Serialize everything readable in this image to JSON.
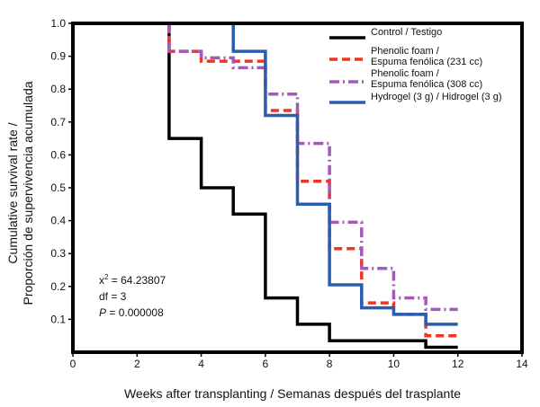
{
  "chart_data": {
    "type": "line",
    "title": "",
    "xlabel": "Weeks after transplanting / Semanas después del trasplante",
    "ylabel_line1": "Cumulative survival rate /",
    "ylabel_line2": "Proporción de supervivencia acumulada",
    "xlim": [
      0,
      14
    ],
    "ylim": [
      0,
      1.0
    ],
    "x_ticks": [
      0,
      2,
      4,
      6,
      8,
      10,
      12,
      14
    ],
    "y_ticks": [
      0.1,
      0.2,
      0.3,
      0.4,
      0.5,
      0.6,
      0.7,
      0.8,
      0.9,
      1.0
    ],
    "x_tick_labels": [
      "0",
      "2",
      "4",
      "6",
      "8",
      "10",
      "12",
      "14"
    ],
    "y_tick_labels": [
      "0.1",
      "0.2",
      "0.3",
      "0.4",
      "0.5",
      "0.6",
      "0.7",
      "0.8",
      "0.9",
      "1.0"
    ],
    "grid": false,
    "legend_position": "top-right",
    "series": [
      {
        "name": "Control / Testigo",
        "legend_lines": [
          "Control / Testigo"
        ],
        "color": "#000000",
        "dash": "solid",
        "x": [
          3,
          3,
          4,
          4,
          5,
          5,
          6,
          6,
          7,
          7,
          8,
          8,
          11,
          11,
          12
        ],
        "y": [
          1.0,
          0.65,
          0.65,
          0.5,
          0.5,
          0.42,
          0.42,
          0.165,
          0.165,
          0.085,
          0.085,
          0.035,
          0.035,
          0.015,
          0.015
        ]
      },
      {
        "name": "Phenolic foam / Espuma fenólica (231 cc)",
        "legend_lines": [
          "Phenolic foam /",
          "Espuma fenólica (231 cc)"
        ],
        "color": "#ee3524",
        "dash": "dashed",
        "x": [
          3,
          3,
          4,
          4,
          6,
          6,
          7,
          7,
          8,
          8,
          9,
          9,
          10,
          10,
          11,
          11,
          12
        ],
        "y": [
          1.0,
          0.915,
          0.915,
          0.885,
          0.885,
          0.735,
          0.735,
          0.52,
          0.52,
          0.315,
          0.315,
          0.15,
          0.15,
          0.115,
          0.115,
          0.05,
          0.05
        ]
      },
      {
        "name": "Phenolic foam / Espuma fenólica (308 cc)",
        "legend_lines": [
          "Phenolic foam /",
          "Espuma fenólica (308 cc)"
        ],
        "color": "#a25bb8",
        "dash": "dashdot",
        "x": [
          3,
          3,
          4,
          4,
          5,
          5,
          6,
          6,
          7,
          7,
          8,
          8,
          9,
          9,
          10,
          10,
          11,
          11,
          12
        ],
        "y": [
          1.0,
          0.915,
          0.915,
          0.895,
          0.895,
          0.865,
          0.865,
          0.785,
          0.785,
          0.635,
          0.635,
          0.395,
          0.395,
          0.255,
          0.255,
          0.165,
          0.165,
          0.13,
          0.13
        ]
      },
      {
        "name": "Hydrogel (3 g) / Hidrogel (3 g)",
        "legend_lines": [
          "Hydrogel (3 g) / Hidrogel (3 g)"
        ],
        "color": "#2a5db0",
        "dash": "solid",
        "x": [
          5,
          5,
          6,
          6,
          7,
          7,
          8,
          8,
          9,
          9,
          10,
          10,
          11,
          11,
          12
        ],
        "y": [
          1.0,
          0.915,
          0.915,
          0.72,
          0.72,
          0.45,
          0.45,
          0.205,
          0.205,
          0.135,
          0.135,
          0.115,
          0.115,
          0.085,
          0.085
        ]
      }
    ],
    "stats": {
      "chi_label": "x",
      "chi_sup": "2",
      "chi_value": " = 64.23807",
      "df_line": "df = 3",
      "p_label": "P",
      "p_value": " = 0.000008"
    }
  }
}
